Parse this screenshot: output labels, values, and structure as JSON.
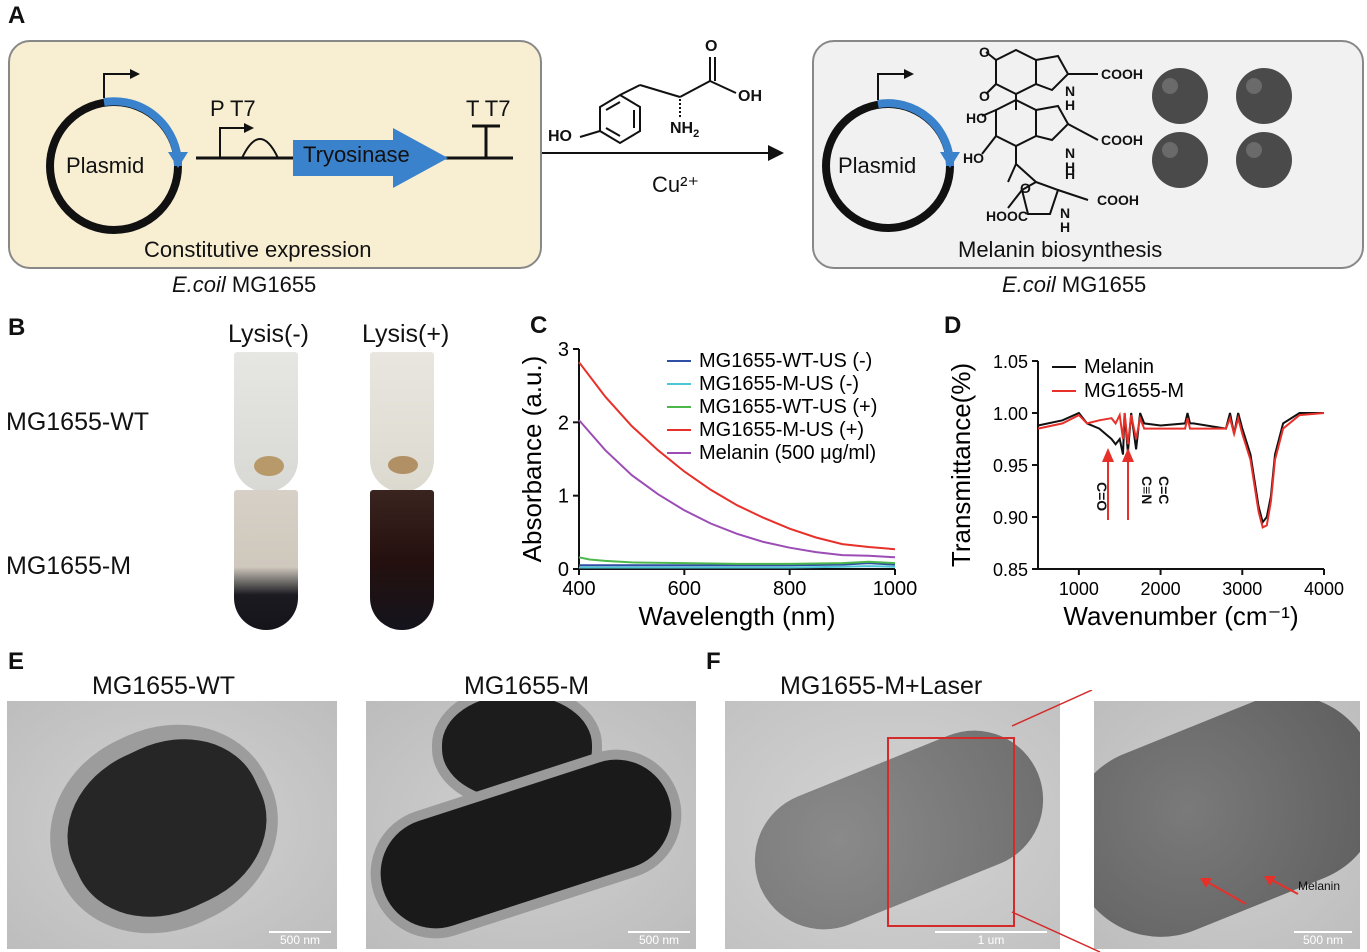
{
  "panelA": {
    "letter": "A",
    "left_box": {
      "plasmid": "Plasmid",
      "promoter": "P T7",
      "gene": "Tryosinase",
      "terminator": "T T7",
      "caption": "Constitutive expression"
    },
    "left_strain_italic": "E.coil",
    "left_strain": " MG1655",
    "reaction_condition": "Cu²⁺",
    "substrate_labels": {
      "o": "O",
      "oh": "OH",
      "ho": "HO",
      "nh2": "NH",
      "nh2_sub": "2"
    },
    "right_box": {
      "plasmid": "Plasmid",
      "caption": "Melanin biosynthesis",
      "chem": {
        "o1": "O",
        "o2": "O",
        "o3": "O",
        "ho1": "HO",
        "ho2": "HO",
        "cooh1": "COOH",
        "cooh2": "COOH",
        "cooh3": "COOH",
        "hooc": "HOOC",
        "nh1": "N",
        "nh1h": "H",
        "nh2": "N",
        "nh2h": "H",
        "nh3": "N",
        "nh3h": "H",
        "h": "H"
      }
    },
    "right_strain_italic": "E.coil",
    "right_strain": " MG1655"
  },
  "panelB": {
    "letter": "B",
    "col1": "Lysis(-)",
    "col2": "Lysis(+)",
    "row1": "MG1655-WT",
    "row2": "MG1655-M"
  },
  "panelC": {
    "letter": "C"
  },
  "panelD": {
    "letter": "D",
    "ann1": "C=O",
    "ann2": "C≡N",
    "ann3": "C=C"
  },
  "panelE": {
    "letter": "E",
    "img1_title": "MG1655-WT",
    "img2_title": "MG1655-M",
    "scale1": "500 nm",
    "scale2": "500 nm"
  },
  "panelF": {
    "letter": "F",
    "img_title": "MG1655-M+Laser",
    "scale1": "1 um",
    "scale2": "500 nm",
    "annotation": "Melanin"
  },
  "chart_data": [
    {
      "type": "line",
      "xlabel": "Wavelength (nm)",
      "ylabel": "Absorbance (a.u.)",
      "xlim": [
        400,
        1000
      ],
      "ylim": [
        0,
        3
      ],
      "xticks": [
        "400",
        "600",
        "800",
        "1000"
      ],
      "yticks": [
        "0",
        "1",
        "2",
        "3"
      ],
      "legend_position": "top-right",
      "series": [
        {
          "name": "MG1655-WT-US (-)",
          "color": "#2e4fa3",
          "x": [
            400,
            500,
            600,
            700,
            800,
            900,
            950,
            1000
          ],
          "y": [
            0.05,
            0.05,
            0.05,
            0.05,
            0.05,
            0.06,
            0.08,
            0.06
          ]
        },
        {
          "name": "MG1655-M-US (-)",
          "color": "#4cc6d6",
          "x": [
            400,
            500,
            600,
            700,
            800,
            900,
            950,
            1000
          ],
          "y": [
            0.02,
            0.02,
            0.02,
            0.02,
            0.02,
            0.03,
            0.04,
            0.03
          ]
        },
        {
          "name": "MG1655-WT-US (+)",
          "color": "#4cb84c",
          "x": [
            400,
            420,
            450,
            500,
            600,
            700,
            800,
            900,
            950,
            1000
          ],
          "y": [
            0.16,
            0.13,
            0.11,
            0.09,
            0.08,
            0.07,
            0.07,
            0.08,
            0.1,
            0.08
          ]
        },
        {
          "name": "MG1655-M-US (+)",
          "color": "#e8302a",
          "x": [
            400,
            450,
            500,
            550,
            600,
            650,
            700,
            750,
            800,
            850,
            900,
            950,
            1000
          ],
          "y": [
            2.82,
            2.35,
            1.95,
            1.62,
            1.33,
            1.08,
            0.87,
            0.7,
            0.55,
            0.43,
            0.34,
            0.3,
            0.27
          ]
        },
        {
          "name": "Melanin (500 μg/ml)",
          "color": "#9b4db5",
          "x": [
            400,
            450,
            500,
            550,
            600,
            650,
            700,
            750,
            800,
            850,
            900,
            950,
            1000
          ],
          "y": [
            2.03,
            1.62,
            1.28,
            1.02,
            0.8,
            0.62,
            0.48,
            0.37,
            0.29,
            0.23,
            0.19,
            0.18,
            0.16
          ]
        }
      ]
    },
    {
      "type": "line",
      "xlabel": "Wavenumber (cm⁻¹)",
      "ylabel": "Transmittance(%)",
      "xlim": [
        500,
        4000
      ],
      "ylim": [
        0.85,
        1.05
      ],
      "xticks": [
        "1000",
        "2000",
        "3000",
        "4000"
      ],
      "yticks": [
        "0.85",
        "0.90",
        "0.95",
        "1.00",
        "1.05"
      ],
      "legend_position": "top-left",
      "series": [
        {
          "name": "Melanin",
          "color": "#111111",
          "x": [
            500,
            800,
            1000,
            1100,
            1250,
            1400,
            1450,
            1500,
            1540,
            1560,
            1600,
            1640,
            1700,
            1750,
            1800,
            2000,
            2300,
            2330,
            2360,
            2400,
            2800,
            2850,
            2900,
            2950,
            3000,
            3100,
            3200,
            3250,
            3300,
            3350,
            3400,
            3500,
            3700,
            4000
          ],
          "y": [
            0.988,
            0.993,
            1.0,
            0.99,
            0.985,
            0.975,
            0.97,
            0.975,
            0.96,
            1.0,
            0.962,
            1.0,
            0.965,
            1.0,
            0.99,
            0.988,
            0.99,
            1.0,
            0.99,
            0.99,
            0.985,
            1.0,
            0.98,
            1.0,
            0.985,
            0.96,
            0.91,
            0.895,
            0.9,
            0.92,
            0.96,
            0.99,
            1.0,
            1.0
          ]
        },
        {
          "name": "MG1655-M",
          "color": "#e8302a",
          "x": [
            500,
            800,
            1000,
            1100,
            1250,
            1400,
            1450,
            1500,
            1540,
            1560,
            1600,
            1640,
            1700,
            1750,
            1800,
            2000,
            2300,
            2330,
            2360,
            2400,
            2800,
            2850,
            2900,
            2950,
            3000,
            3100,
            3200,
            3250,
            3300,
            3350,
            3400,
            3500,
            3700,
            4000
          ],
          "y": [
            0.985,
            0.99,
            0.998,
            0.99,
            0.993,
            0.995,
            0.99,
            0.998,
            0.975,
            1.0,
            0.97,
            0.998,
            0.975,
            0.995,
            0.985,
            0.985,
            0.985,
            0.995,
            0.985,
            0.985,
            0.985,
            0.995,
            0.98,
            0.995,
            0.98,
            0.955,
            0.905,
            0.89,
            0.892,
            0.915,
            0.955,
            0.985,
            0.998,
            1.0
          ]
        }
      ]
    }
  ]
}
